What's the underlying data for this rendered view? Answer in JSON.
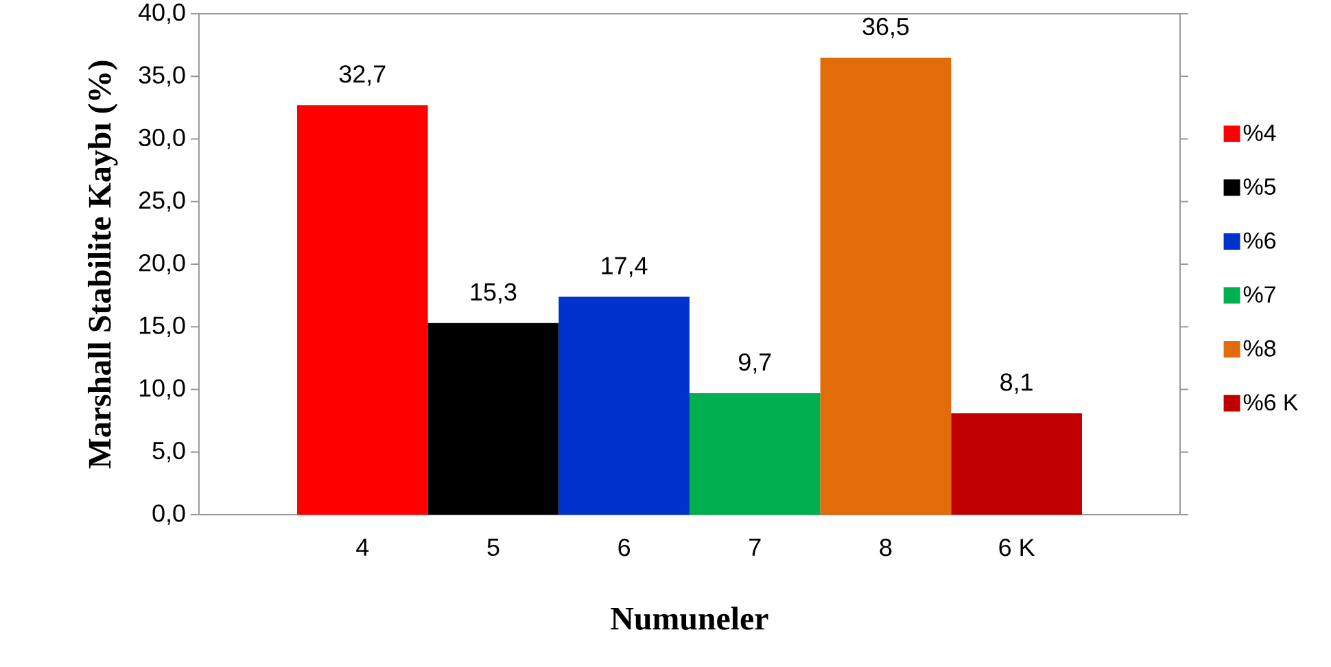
{
  "chart_data": {
    "type": "bar",
    "stacked": true,
    "xlabel": "Numuneler",
    "ylabel": "Marshall Stabilite Kaybı (%)",
    "categories": [
      "4",
      "5",
      "6",
      "7",
      "8",
      "6 K"
    ],
    "series": [
      {
        "name": "%4",
        "color": "#ff0000",
        "values": [
          32.7,
          null,
          null,
          null,
          null,
          null
        ],
        "value_labels": [
          "32,7",
          null,
          null,
          null,
          null,
          null
        ]
      },
      {
        "name": "%5",
        "color": "#000000",
        "values": [
          null,
          15.3,
          null,
          null,
          null,
          null
        ],
        "value_labels": [
          null,
          "15,3",
          null,
          null,
          null,
          null
        ]
      },
      {
        "name": "%6",
        "color": "#0033cc",
        "values": [
          null,
          null,
          17.4,
          null,
          null,
          null
        ],
        "value_labels": [
          null,
          null,
          "17,4",
          null,
          null,
          null
        ]
      },
      {
        "name": "%7",
        "color": "#00b050",
        "values": [
          null,
          null,
          null,
          9.7,
          null,
          null
        ],
        "value_labels": [
          null,
          null,
          null,
          "9,7",
          null,
          null
        ]
      },
      {
        "name": "%8",
        "color": "#e36c0a",
        "values": [
          null,
          null,
          null,
          null,
          36.5,
          null
        ],
        "value_labels": [
          null,
          null,
          null,
          null,
          "36,5",
          null
        ]
      },
      {
        "name": "%6 K",
        "color": "#c00000",
        "values": [
          null,
          null,
          null,
          null,
          null,
          8.1
        ],
        "value_labels": [
          null,
          null,
          null,
          null,
          null,
          "8,1"
        ]
      }
    ],
    "ylim": [
      0,
      40
    ],
    "yticks": [
      {
        "value": 0,
        "label": "0,0"
      },
      {
        "value": 5,
        "label": "5,0"
      },
      {
        "value": 10,
        "label": "10,0"
      },
      {
        "value": 15,
        "label": "15,0"
      },
      {
        "value": 20,
        "label": "20,0"
      },
      {
        "value": 25,
        "label": "25,0"
      },
      {
        "value": 30,
        "label": "30,0"
      },
      {
        "value": 35,
        "label": "35,0"
      },
      {
        "value": 40,
        "label": "40,0"
      }
    ],
    "grid": false,
    "legend": "right"
  }
}
